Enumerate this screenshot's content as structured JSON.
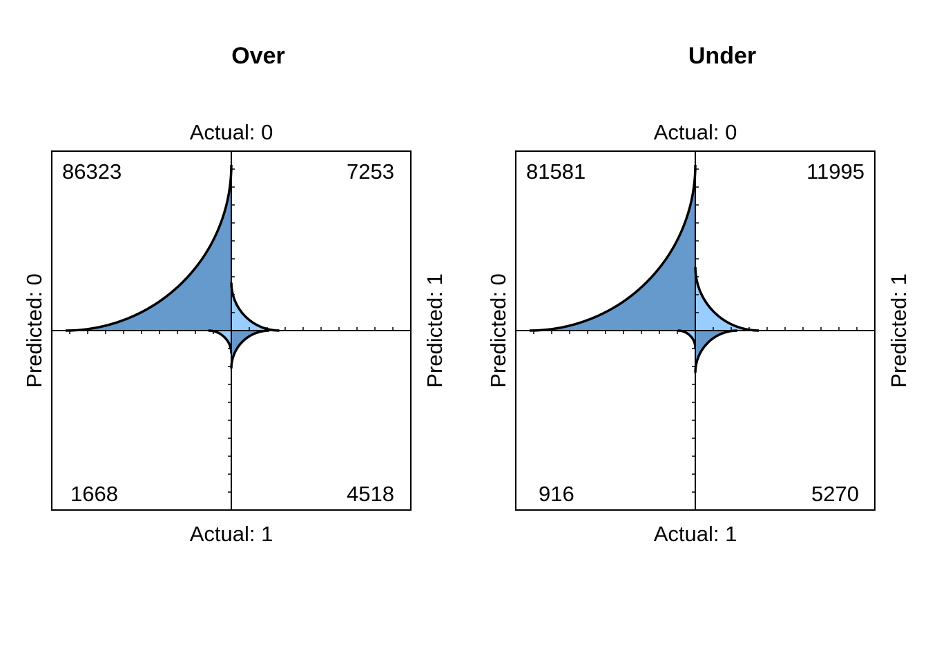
{
  "chart_data": [
    {
      "type": "fourfold",
      "title": "Over",
      "row_labels": [
        "Actual: 0",
        "Actual: 1"
      ],
      "col_labels": [
        "Predicted: 0",
        "Predicted: 1"
      ],
      "cells": {
        "actual0_predicted0": 86323,
        "actual0_predicted1": 7253,
        "actual1_predicted0": 1668,
        "actual1_predicted1": 4518
      }
    },
    {
      "type": "fourfold",
      "title": "Under",
      "row_labels": [
        "Actual: 0",
        "Actual: 1"
      ],
      "col_labels": [
        "Predicted: 0",
        "Predicted: 1"
      ],
      "cells": {
        "actual0_predicted0": 81581,
        "actual0_predicted1": 11995,
        "actual1_predicted0": 916,
        "actual1_predicted1": 5270
      }
    }
  ],
  "colors": {
    "dark_fill": "#6699CC",
    "light_fill": "#99CCFF",
    "outline": "#000000",
    "text": "#000000",
    "background": "#FFFFFF"
  }
}
